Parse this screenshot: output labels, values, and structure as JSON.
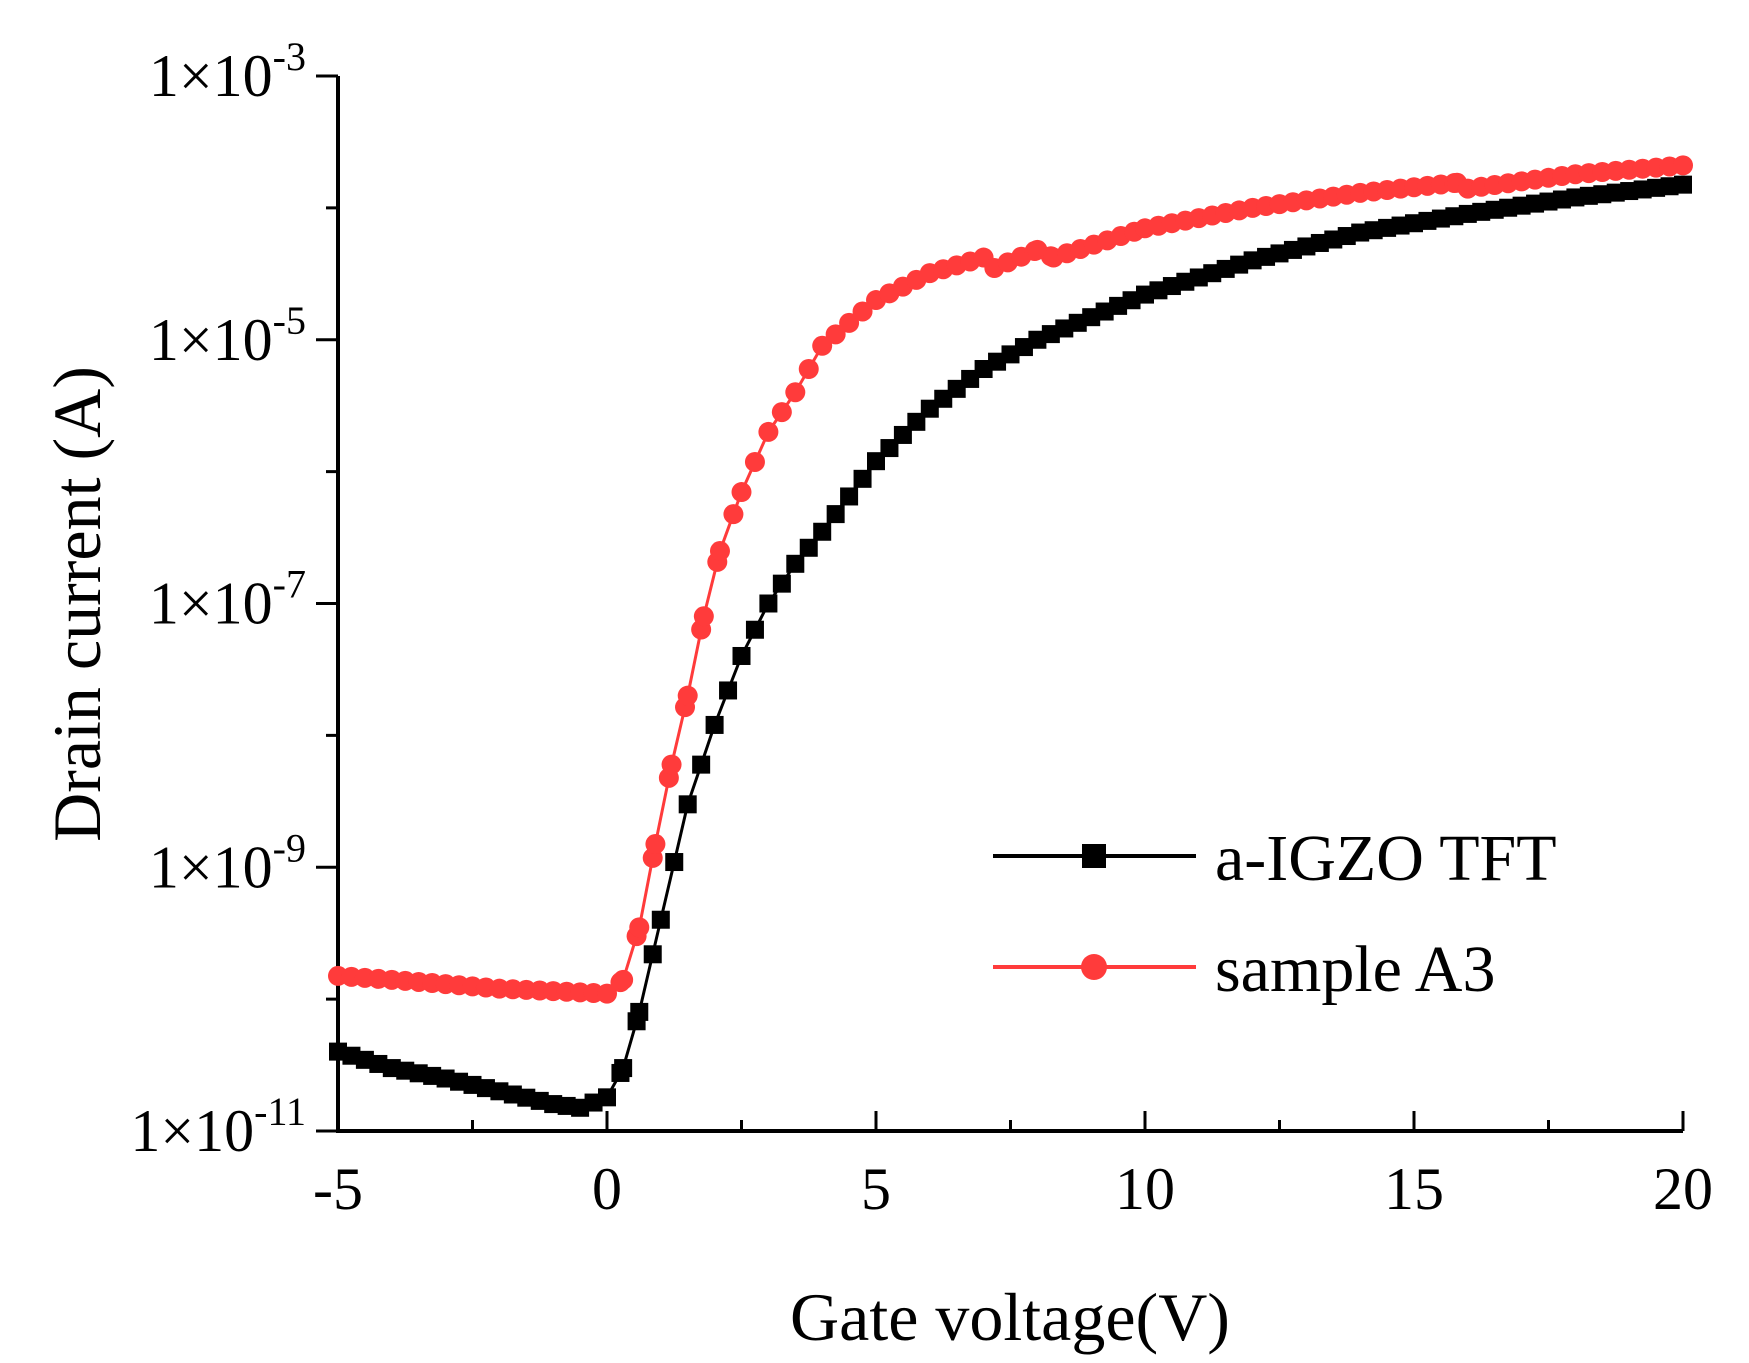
{
  "chart_data": {
    "type": "line",
    "title": "",
    "xlabel": "Gate voltage(V)",
    "ylabel": "Drain current (A)",
    "y_scale": "log",
    "xlim": [
      -5,
      20
    ],
    "ylim": [
      1e-11,
      0.001
    ],
    "x_ticks": [
      -5,
      0,
      5,
      10,
      15,
      20
    ],
    "x_tick_labels": [
      "-5",
      "0",
      "5",
      "10",
      "15",
      "20"
    ],
    "y_tick_labels": [
      {
        "value": 1e-11,
        "mantissa": "1×10",
        "exponent": "-11"
      },
      {
        "value": 1e-09,
        "mantissa": "1×10",
        "exponent": "-9"
      },
      {
        "value": 1e-07,
        "mantissa": "1×10",
        "exponent": "-7"
      },
      {
        "value": 1e-05,
        "mantissa": "1×10",
        "exponent": "-5"
      },
      {
        "value": 0.001,
        "mantissa": "1×10",
        "exponent": "-3"
      }
    ],
    "legend": {
      "position": "lower-right"
    },
    "series": [
      {
        "name": "a-IGZO TFT",
        "color": "#000000",
        "marker": "square",
        "x": [
          -5,
          -4,
          -3,
          -2,
          -1,
          -0.5,
          0,
          0.3,
          0.6,
          1.0,
          1.5,
          2.0,
          2.5,
          3.0,
          3.5,
          4.0,
          5.0,
          6.0,
          7.0,
          8.0,
          10.0,
          12.0,
          14.0,
          16.0,
          18.0,
          20.0
        ],
        "y": [
          4e-11,
          3e-11,
          2.5e-11,
          2e-11,
          1.6e-11,
          1.5e-11,
          1.8e-11,
          3e-11,
          8e-11,
          4e-10,
          3e-09,
          1.2e-08,
          4e-08,
          1e-07,
          2e-07,
          3.5e-07,
          1.2e-06,
          3e-06,
          6e-06,
          1e-05,
          2.2e-05,
          4e-05,
          6.5e-05,
          9e-05,
          0.00012,
          0.00015
        ]
      },
      {
        "name": "sample A3",
        "color": "#ff3b3b",
        "marker": "circle",
        "x": [
          -5,
          -4,
          -3,
          -2,
          -1,
          0,
          0.3,
          0.6,
          0.9,
          1.2,
          1.5,
          1.8,
          2.1,
          2.5,
          3.0,
          3.5,
          4.0,
          5.0,
          6.0,
          7.0,
          7.2,
          8.0,
          8.3,
          10.0,
          12.0,
          14.0,
          15.8,
          16.0,
          18.0,
          20.0
        ],
        "y": [
          1.5e-10,
          1.4e-10,
          1.3e-10,
          1.2e-10,
          1.15e-10,
          1.1e-10,
          1.4e-10,
          3.5e-10,
          1.5e-09,
          6e-09,
          2e-08,
          8e-08,
          2.5e-07,
          7e-07,
          2e-06,
          4e-06,
          9e-06,
          2e-05,
          3.2e-05,
          4.2e-05,
          3.5e-05,
          4.8e-05,
          4.2e-05,
          7e-05,
          0.0001,
          0.00013,
          0.000155,
          0.00014,
          0.00018,
          0.00021
        ]
      }
    ]
  }
}
